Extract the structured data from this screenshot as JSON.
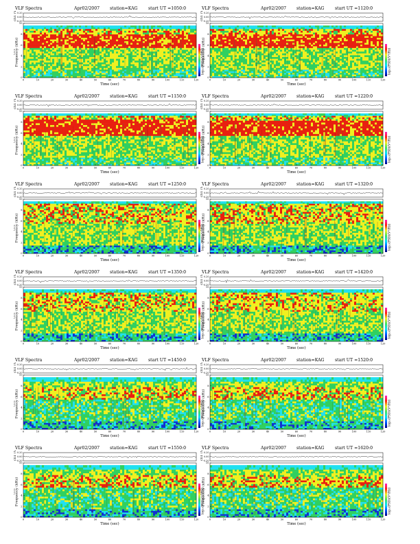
{
  "header": {
    "title": "VLF Spectra",
    "date": "Apr02/2007",
    "station": "station=KAG",
    "start_prefix": "start  UT ="
  },
  "labels": {
    "ch_axis": "ch1 (V)",
    "freq_axis": "Frequency (kHz)",
    "freq_prefix": "ch1",
    "time_axis": "Time (sec)",
    "colorbar": "log₁₀(PSD)(V²/Hz)"
  },
  "chart_data": [
    {
      "type": "heatmap",
      "start_ut": "1050:0",
      "xlim": [
        0,
        120
      ],
      "ylim": [
        0,
        10
      ],
      "ch_ylim": [
        -0.2,
        0.2
      ],
      "x_ticks": [
        0,
        10,
        20,
        30,
        40,
        50,
        60,
        70,
        80,
        90,
        100,
        110,
        120
      ],
      "y_ticks": [
        0,
        2,
        4,
        6,
        8,
        10
      ],
      "ch_ticks": [
        "0.20",
        "0.00",
        "-0.20"
      ],
      "bands": [
        {
          "from": 0,
          "to": 1.5,
          "level": "green"
        },
        {
          "from": 1.5,
          "to": 5.5,
          "level": "green-yellow"
        },
        {
          "from": 5.5,
          "to": 8,
          "level": "red"
        },
        {
          "from": 8,
          "to": 9,
          "level": "yellow"
        },
        {
          "from": 9,
          "to": 9.6,
          "level": "cyan"
        }
      ]
    },
    {
      "type": "heatmap",
      "start_ut": "1120:0",
      "xlim": [
        0,
        120
      ],
      "ylim": [
        0,
        10
      ],
      "ch_ylim": [
        -0.2,
        0.2
      ],
      "x_ticks": [
        0,
        10,
        20,
        30,
        40,
        50,
        60,
        70,
        80,
        90,
        100,
        110,
        120
      ],
      "y_ticks": [
        0,
        2,
        4,
        6,
        8,
        10
      ],
      "ch_ticks": [
        "0.20",
        "0.00",
        "-0.20"
      ],
      "bands": [
        {
          "from": 0,
          "to": 1.5,
          "level": "green"
        },
        {
          "from": 1.5,
          "to": 5.5,
          "level": "green-yellow"
        },
        {
          "from": 5.5,
          "to": 8,
          "level": "red"
        },
        {
          "from": 8,
          "to": 9,
          "level": "yellow"
        },
        {
          "from": 9,
          "to": 9.6,
          "level": "cyan"
        }
      ]
    },
    {
      "type": "heatmap",
      "start_ut": "1150:0",
      "xlim": [
        0,
        120
      ],
      "ylim": [
        0,
        10
      ],
      "ch_ylim": [
        -0.2,
        0.2
      ],
      "x_ticks": [
        0,
        10,
        20,
        30,
        40,
        50,
        60,
        70,
        80,
        90,
        100,
        110,
        120
      ],
      "y_ticks": [
        0,
        2,
        4,
        6,
        8,
        10
      ],
      "ch_ticks": [
        "0.20",
        "0.00",
        "-0.20"
      ],
      "bands": [
        {
          "from": 0,
          "to": 1.5,
          "level": "green"
        },
        {
          "from": 1.5,
          "to": 5.5,
          "level": "green-yellow"
        },
        {
          "from": 5.5,
          "to": 8.5,
          "level": "red"
        },
        {
          "from": 8.5,
          "to": 9.2,
          "level": "yellow"
        },
        {
          "from": 9.2,
          "to": 9.6,
          "level": "cyan"
        }
      ]
    },
    {
      "type": "heatmap",
      "start_ut": "1220:0",
      "xlim": [
        0,
        120
      ],
      "ylim": [
        0,
        10
      ],
      "ch_ylim": [
        -0.2,
        0.2
      ],
      "x_ticks": [
        0,
        10,
        20,
        30,
        40,
        50,
        60,
        70,
        80,
        90,
        100,
        110,
        120
      ],
      "y_ticks": [
        0,
        2,
        4,
        6,
        8,
        10
      ],
      "ch_ticks": [
        "0.20",
        "0.00",
        "-0.20"
      ],
      "bands": [
        {
          "from": 0,
          "to": 1.5,
          "level": "green"
        },
        {
          "from": 1.5,
          "to": 5.5,
          "level": "green-yellow"
        },
        {
          "from": 5.5,
          "to": 8.3,
          "level": "red"
        },
        {
          "from": 8.3,
          "to": 9.2,
          "level": "yellow"
        },
        {
          "from": 9.2,
          "to": 9.6,
          "level": "cyan"
        }
      ]
    },
    {
      "type": "heatmap",
      "start_ut": "1250:0",
      "xlim": [
        0,
        120
      ],
      "ylim": [
        0,
        10
      ],
      "ch_ylim": [
        -0.2,
        0.2
      ],
      "x_ticks": [
        0,
        10,
        20,
        30,
        40,
        50,
        60,
        70,
        80,
        90,
        100,
        110,
        120
      ],
      "y_ticks": [
        0,
        2,
        4,
        6,
        8,
        10
      ],
      "ch_ticks": [
        "0.20",
        "0.00",
        "-0.20"
      ],
      "bands": [
        {
          "from": 0,
          "to": 1.5,
          "level": "cyan-green"
        },
        {
          "from": 1.5,
          "to": 5.5,
          "level": "green-yellow"
        },
        {
          "from": 5.5,
          "to": 8,
          "level": "yellow-red"
        },
        {
          "from": 8,
          "to": 9.2,
          "level": "yellow"
        },
        {
          "from": 9.2,
          "to": 9.6,
          "level": "cyan"
        }
      ]
    },
    {
      "type": "heatmap",
      "start_ut": "1320:0",
      "xlim": [
        0,
        120
      ],
      "ylim": [
        0,
        10
      ],
      "ch_ylim": [
        -0.2,
        0.2
      ],
      "x_ticks": [
        0,
        10,
        20,
        30,
        40,
        50,
        60,
        70,
        80,
        90,
        100,
        110,
        120
      ],
      "y_ticks": [
        0,
        2,
        4,
        6,
        8,
        10
      ],
      "ch_ticks": [
        "0.20",
        "0.00",
        "-0.20"
      ],
      "bands": [
        {
          "from": 0,
          "to": 1.5,
          "level": "cyan-green"
        },
        {
          "from": 1.5,
          "to": 5.5,
          "level": "green-yellow"
        },
        {
          "from": 5.5,
          "to": 8,
          "level": "yellow-red"
        },
        {
          "from": 8,
          "to": 9.2,
          "level": "yellow"
        },
        {
          "from": 9.2,
          "to": 9.6,
          "level": "cyan"
        }
      ]
    },
    {
      "type": "heatmap",
      "start_ut": "1350:0",
      "xlim": [
        0,
        120
      ],
      "ylim": [
        0,
        10
      ],
      "ch_ylim": [
        -0.2,
        0.2
      ],
      "x_ticks": [
        0,
        10,
        20,
        30,
        40,
        50,
        60,
        70,
        80,
        90,
        100,
        110,
        120
      ],
      "y_ticks": [
        0,
        2,
        4,
        6,
        8,
        10
      ],
      "ch_ticks": [
        "0.20",
        "0.00",
        "-0.20"
      ],
      "bands": [
        {
          "from": 0,
          "to": 1.5,
          "level": "cyan-green"
        },
        {
          "from": 1.5,
          "to": 5.5,
          "level": "green-yellow"
        },
        {
          "from": 5.5,
          "to": 8,
          "level": "yellow-red"
        },
        {
          "from": 8,
          "to": 9,
          "level": "yellow"
        },
        {
          "from": 9,
          "to": 9.6,
          "level": "cyan"
        }
      ]
    },
    {
      "type": "heatmap",
      "start_ut": "1420:0",
      "xlim": [
        0,
        120
      ],
      "ylim": [
        0,
        10
      ],
      "ch_ylim": [
        -0.2,
        0.2
      ],
      "x_ticks": [
        0,
        10,
        20,
        30,
        40,
        50,
        60,
        70,
        80,
        90,
        100,
        110,
        120
      ],
      "y_ticks": [
        0,
        2,
        4,
        6,
        8,
        10
      ],
      "ch_ticks": [
        "0.20",
        "0.00",
        "-0.20"
      ],
      "bands": [
        {
          "from": 0,
          "to": 1.5,
          "level": "cyan-green"
        },
        {
          "from": 1.5,
          "to": 5.5,
          "level": "green-yellow"
        },
        {
          "from": 5.5,
          "to": 8,
          "level": "yellow-red"
        },
        {
          "from": 8,
          "to": 9,
          "level": "yellow"
        },
        {
          "from": 9,
          "to": 9.6,
          "level": "cyan"
        }
      ]
    },
    {
      "type": "heatmap",
      "start_ut": "1450:0",
      "xlim": [
        0,
        120
      ],
      "ylim": [
        0,
        10
      ],
      "ch_ylim": [
        -0.2,
        0.2
      ],
      "x_ticks": [
        0,
        10,
        20,
        30,
        40,
        50,
        60,
        70,
        80,
        90,
        100,
        110,
        120
      ],
      "y_ticks": [
        0,
        2,
        4,
        6,
        8,
        10
      ],
      "ch_ticks": [
        "0.20",
        "0.00",
        "-0.20"
      ],
      "bands": [
        {
          "from": 0,
          "to": 1.5,
          "level": "cyan-green"
        },
        {
          "from": 1.5,
          "to": 5.5,
          "level": "green"
        },
        {
          "from": 5.5,
          "to": 7.8,
          "level": "yellow"
        },
        {
          "from": 7.8,
          "to": 8.8,
          "level": "green-yellow"
        },
        {
          "from": 8.8,
          "to": 9.6,
          "level": "cyan"
        }
      ]
    },
    {
      "type": "heatmap",
      "start_ut": "1520:0",
      "xlim": [
        0,
        120
      ],
      "ylim": [
        0,
        10
      ],
      "ch_ylim": [
        -0.2,
        0.2
      ],
      "x_ticks": [
        0,
        10,
        20,
        30,
        40,
        50,
        60,
        70,
        80,
        90,
        100,
        110,
        120
      ],
      "y_ticks": [
        0,
        2,
        4,
        6,
        8,
        10
      ],
      "ch_ticks": [
        "0.20",
        "0.00",
        "-0.20"
      ],
      "bands": [
        {
          "from": 0,
          "to": 1.5,
          "level": "cyan-green"
        },
        {
          "from": 1.5,
          "to": 5.5,
          "level": "green"
        },
        {
          "from": 5.5,
          "to": 7.8,
          "level": "yellow-red"
        },
        {
          "from": 7.8,
          "to": 8.8,
          "level": "green-yellow"
        },
        {
          "from": 8.8,
          "to": 9.6,
          "level": "cyan"
        }
      ]
    },
    {
      "type": "heatmap",
      "start_ut": "1550:0",
      "xlim": [
        0,
        120
      ],
      "ylim": [
        0,
        10
      ],
      "ch_ylim": [
        -0.2,
        0.2
      ],
      "x_ticks": [
        0,
        10,
        20,
        30,
        40,
        50,
        60,
        70,
        80,
        90,
        100,
        110,
        120
      ],
      "y_ticks": [
        0,
        2,
        4,
        6,
        8,
        10
      ],
      "ch_ticks": [
        "0.20",
        "0.00",
        "-0.20"
      ],
      "bands": [
        {
          "from": 0,
          "to": 1.5,
          "level": "cyan-green"
        },
        {
          "from": 1.5,
          "to": 5.5,
          "level": "green"
        },
        {
          "from": 5.5,
          "to": 7.8,
          "level": "yellow-red"
        },
        {
          "from": 7.8,
          "to": 8.8,
          "level": "green-yellow"
        },
        {
          "from": 8.8,
          "to": 9.6,
          "level": "cyan"
        }
      ]
    },
    {
      "type": "heatmap",
      "start_ut": "1620:0",
      "xlim": [
        0,
        120
      ],
      "ylim": [
        0,
        10
      ],
      "ch_ylim": [
        -0.2,
        0.2
      ],
      "x_ticks": [
        0,
        10,
        20,
        30,
        40,
        50,
        60,
        70,
        80,
        90,
        100,
        110,
        120
      ],
      "y_ticks": [
        0,
        2,
        4,
        6,
        8,
        10
      ],
      "ch_ticks": [
        "0.20",
        "0.00",
        "-0.20"
      ],
      "bands": [
        {
          "from": 0,
          "to": 1.5,
          "level": "cyan-green"
        },
        {
          "from": 1.5,
          "to": 5.5,
          "level": "green"
        },
        {
          "from": 5.5,
          "to": 7.8,
          "level": "yellow-red"
        },
        {
          "from": 7.8,
          "to": 8.8,
          "level": "green-yellow"
        },
        {
          "from": 8.8,
          "to": 9.6,
          "level": "cyan"
        }
      ]
    }
  ],
  "colors": {
    "blue": "#1030d0",
    "cyan": "#20e0f0",
    "green": "#30d060",
    "yellow": "#f0f020",
    "red": "#e82010",
    "colorbar_stops": [
      "#000080",
      "#0050ff",
      "#00e0ff",
      "#40e060",
      "#f0f020",
      "#ff2010",
      "#ff20c0"
    ]
  }
}
